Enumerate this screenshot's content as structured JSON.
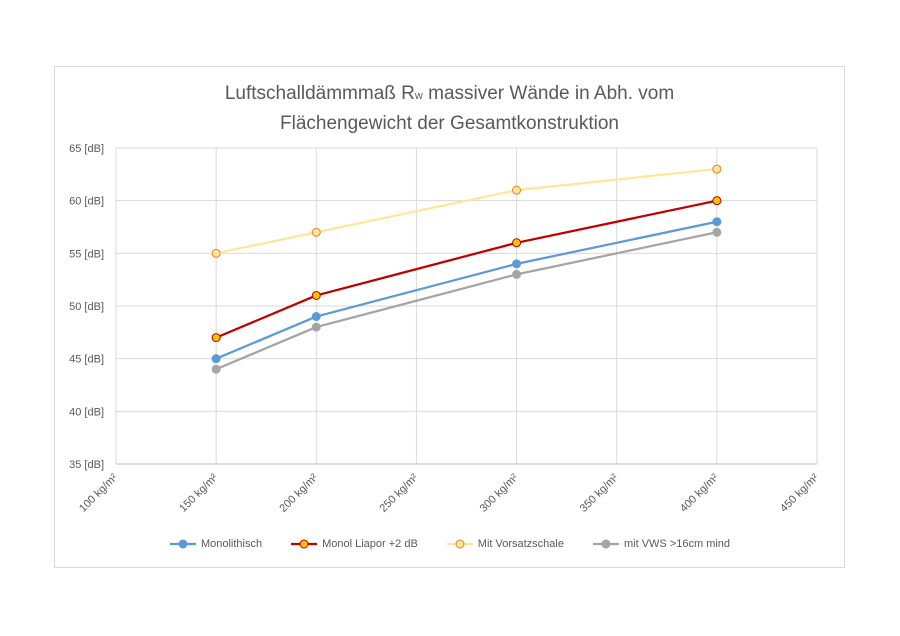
{
  "chart_data": {
    "type": "line",
    "title_parts": {
      "line1_a": "Luftschalldämmmaß R",
      "line1_sub": "w",
      "line1_b": " massiver Wände in Abh. vom",
      "line2": "Flächengewicht der Gesamtkonstruktion"
    },
    "x_ticks": [
      "100 kg/m²",
      "150 kg/m²",
      "200 kg/m²",
      "250 kg/m²",
      "300 kg/m²",
      "350 kg/m²",
      "400 kg/m²",
      "450 kg/m²"
    ],
    "x_tick_values": [
      100,
      150,
      200,
      250,
      300,
      350,
      400,
      450
    ],
    "xlim": [
      100,
      450
    ],
    "y_ticks": [
      "35 [dB]",
      "40 [dB]",
      "45 [dB]",
      "50 [dB]",
      "55 [dB]",
      "60 [dB]",
      "65 [dB]"
    ],
    "y_tick_values": [
      35,
      40,
      45,
      50,
      55,
      60,
      65
    ],
    "ylim": [
      35,
      65
    ],
    "grid": true,
    "legend_position": "bottom",
    "x": [
      150,
      200,
      300,
      400
    ],
    "series": [
      {
        "name": "Monolithisch",
        "values": [
          45,
          49,
          54,
          58
        ],
        "color": "#5b9bd5",
        "marker_fill": "#5b9bd5",
        "marker_stroke": "#5b9bd5"
      },
      {
        "name": "Monol Liapor +2 dB",
        "values": [
          47,
          51,
          56,
          60
        ],
        "color": "#c00000",
        "marker_fill": "#ffc000",
        "marker_stroke": "#c00000"
      },
      {
        "name": "Mit Vorsatzschale",
        "values": [
          55,
          57,
          61,
          63
        ],
        "color": "#ffe699",
        "marker_fill": "#ffe699",
        "marker_stroke": "#ed7d31"
      },
      {
        "name": "mit VWS >16cm mind",
        "values": [
          44,
          48,
          53,
          57
        ],
        "color": "#a5a5a5",
        "marker_fill": "#a5a5a5",
        "marker_stroke": "#a5a5a5"
      }
    ]
  }
}
